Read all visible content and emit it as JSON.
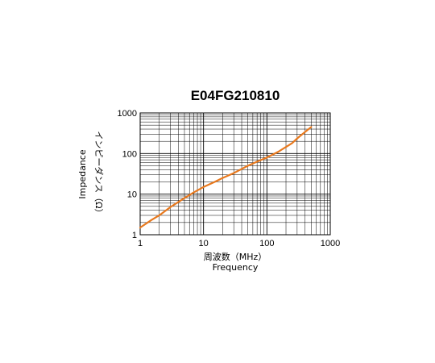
{
  "chart_data": {
    "type": "line",
    "title": "E04FG210810",
    "xlabel": "周波数（MHz）",
    "xlabel_en": "Frequency",
    "ylabel": "インピーダンス（Ω）",
    "ylabel_en": "Impedance",
    "x_scale": "log",
    "y_scale": "log",
    "xlim": [
      1,
      1000
    ],
    "ylim": [
      1,
      1000
    ],
    "grid": true,
    "x_ticks": [
      "1",
      "10",
      "100",
      "1000"
    ],
    "y_ticks": [
      "1",
      "10",
      "100",
      "1000"
    ],
    "line_color": "#e8791e",
    "series": [
      {
        "x": [
          1,
          1.5,
          2,
          3,
          5,
          7,
          10,
          15,
          20,
          30,
          50,
          70,
          100,
          150,
          200,
          250,
          300,
          400,
          500
        ],
        "y": [
          1.5,
          2.3,
          3.0,
          4.8,
          8.0,
          11,
          15,
          20,
          25,
          33,
          50,
          63,
          80,
          110,
          145,
          180,
          235,
          340,
          450
        ]
      }
    ]
  }
}
